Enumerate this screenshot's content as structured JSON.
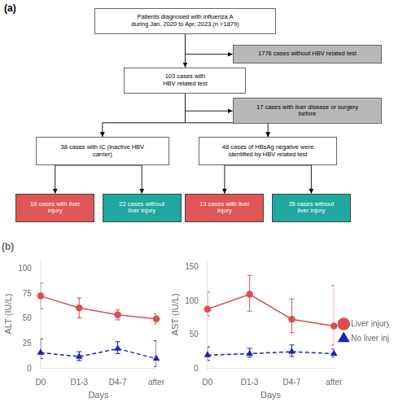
{
  "chart_data": [
    {
      "type": "flowchart",
      "title": "(a)",
      "annotations": [
        "Patients diagnosed with influenza A\nduring Jan, 2020 to Apr, 2023 (n =1879)",
        "1776 cases without HBV related test",
        "103 cases with\nHBV related test",
        "17 cases with liver disease or surgery\nbefore",
        "38 cases with IC (inactive HBV\ncarrier)",
        "48 cases of HBsAg negative were\nidentified by HBV related test",
        "16 cases with liver\ninjury",
        "22 cases without\nliver injury",
        "13 cases with liver\ninjury",
        "35 cases without\nliver injury"
      ],
      "colors": [
        "#ffffff",
        "#b8b8b8",
        "#ffffff",
        "#b8b8b8",
        "#ffffff",
        "#ffffff",
        "#e05555",
        "#1fa8a0",
        "#e05555",
        "#1fa8a0"
      ]
    },
    {
      "type": "line",
      "title": "(b)",
      "categories": [
        "D0",
        "D1-3",
        "D4-7",
        "after"
      ],
      "xlabel": "Days",
      "ylabel": "ALT (IU/L)",
      "ylim": [
        0,
        110
      ],
      "yticks": [
        0,
        25,
        50,
        75,
        100
      ],
      "grid": false,
      "series": [
        {
          "name": "Liver injury",
          "color": "#d94f4f",
          "marker": "circle",
          "line_style": "solid",
          "values": [
            73,
            61,
            54,
            50
          ],
          "yerr_low": [
            13,
            10,
            5,
            5
          ],
          "yerr_high": [
            13,
            10,
            5,
            5
          ]
        },
        {
          "name": "No liver injury",
          "color": "#2020bb",
          "marker": "triangle",
          "line_style": "dashed",
          "values": [
            16,
            12,
            20,
            10
          ],
          "yerr_low": [
            6,
            4,
            5,
            8
          ],
          "yerr_high": [
            14,
            5,
            7,
            18
          ]
        }
      ]
    },
    {
      "type": "line",
      "categories": [
        "D0",
        "D1-3",
        "D4-7",
        "after"
      ],
      "xlabel": "Days",
      "ylabel": "AST (IU/L)",
      "ylim": [
        0,
        160
      ],
      "yticks": [
        0,
        50,
        100,
        150
      ],
      "grid": false,
      "legend": "right",
      "series": [
        {
          "name": "Liver injury",
          "color": "#d94f4f",
          "marker": "circle",
          "line_style": "solid",
          "values": [
            88,
            110,
            73,
            63
          ],
          "yerr_low": [
            10,
            25,
            20,
            28
          ],
          "yerr_high": [
            25,
            28,
            30,
            60
          ]
        },
        {
          "name": "No liver injury",
          "color": "#2020bb",
          "marker": "triangle",
          "line_style": "dashed",
          "values": [
            20,
            22,
            25,
            22
          ],
          "yerr_low": [
            8,
            5,
            7,
            5
          ],
          "yerr_high": [
            12,
            8,
            10,
            7
          ]
        }
      ]
    }
  ]
}
